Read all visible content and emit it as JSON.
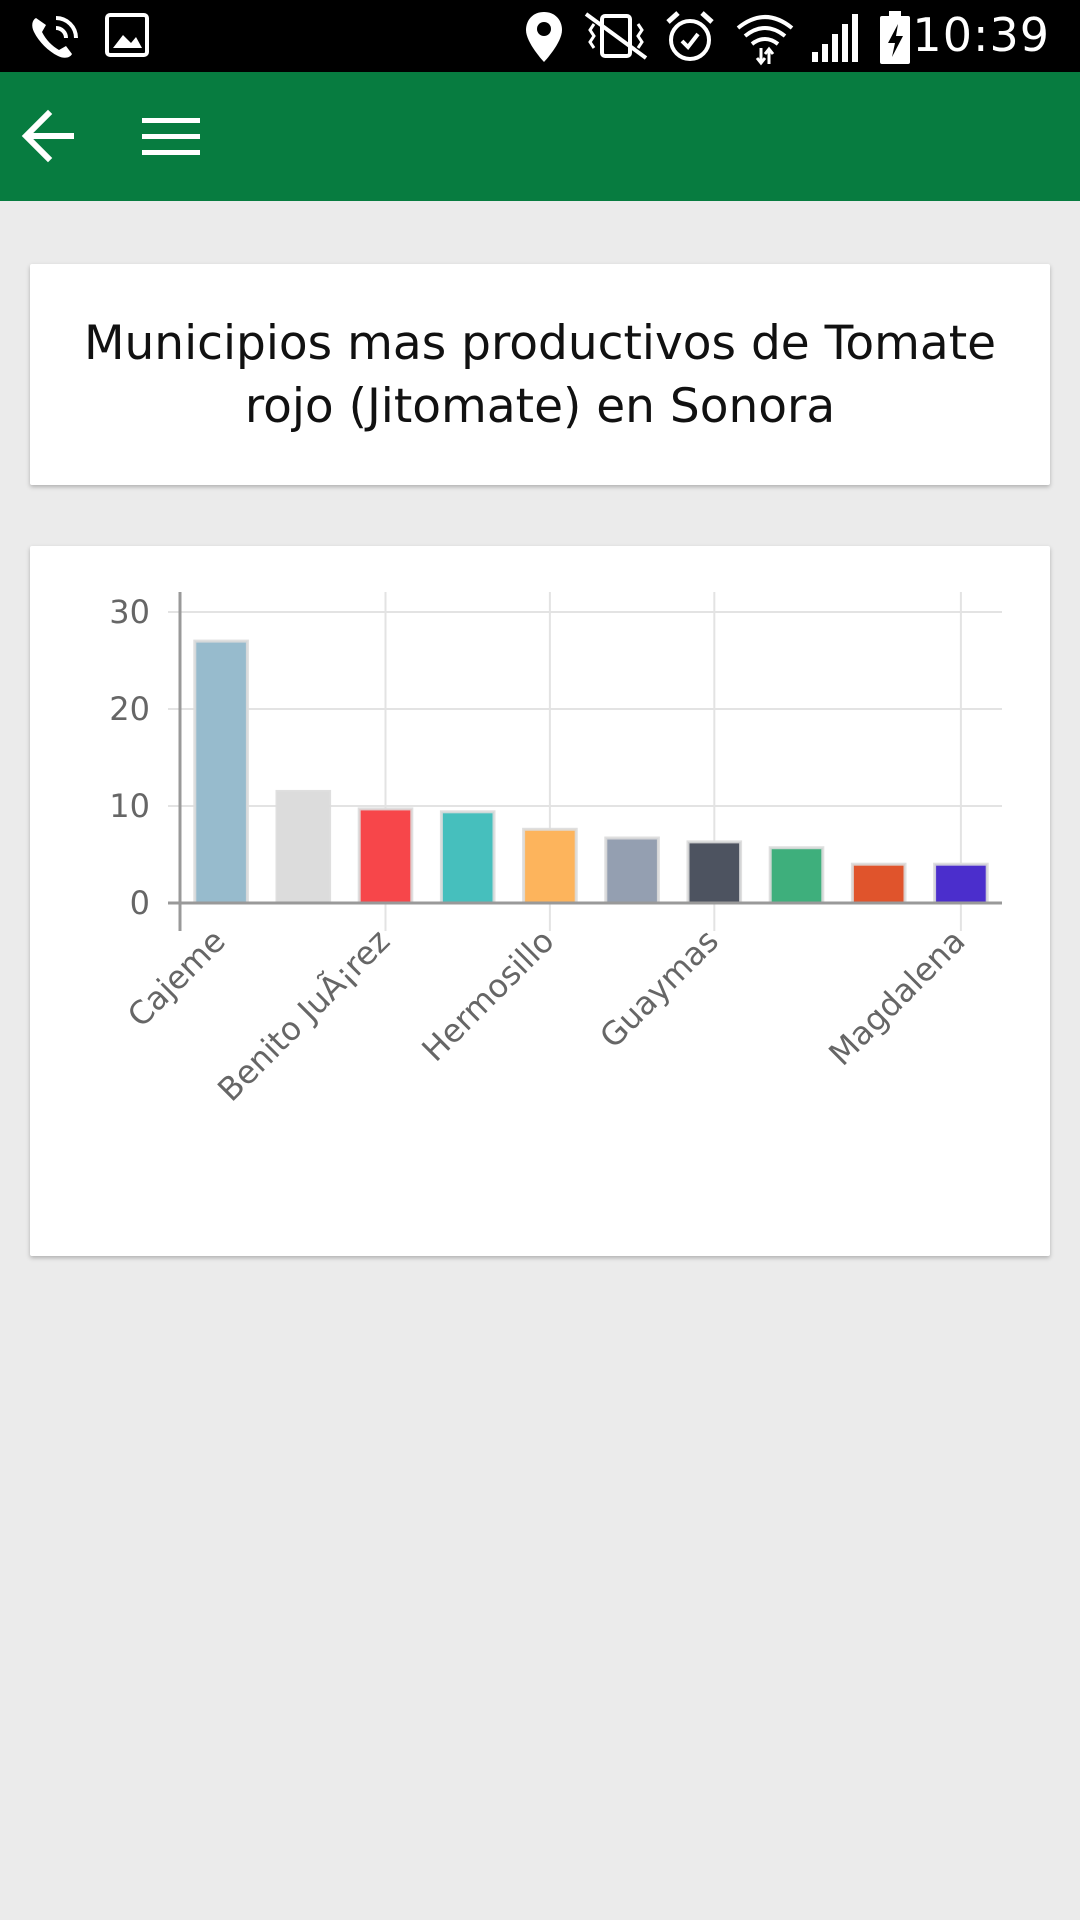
{
  "status_bar": {
    "time": "10:39",
    "icons": [
      "wifi-call-icon",
      "image-icon",
      "location-icon",
      "vibrate-icon",
      "alarm-icon",
      "wifi-icon",
      "signal-icon",
      "battery-charging-icon"
    ]
  },
  "app_bar": {
    "color": "#077c40",
    "back_icon": "arrow-left-icon",
    "menu_icon": "hamburger-menu-icon"
  },
  "title": "Municipios mas productivos de Tomate rojo (Jitomate) en Sonora",
  "chart_data": {
    "type": "bar",
    "categories": [
      "Cajeme",
      "",
      "Benito JuÃ¡rez",
      "",
      "Hermosillo",
      "",
      "Guaymas",
      "",
      "",
      "Magdalena"
    ],
    "values": [
      27,
      11.5,
      9.7,
      9.4,
      7.6,
      6.7,
      6.3,
      5.7,
      4.0,
      4.0
    ],
    "colors": [
      "#97bbcd",
      "#dcdcdc",
      "#f7464a",
      "#46bfbd",
      "#fdb45c",
      "#949fb1",
      "#4d5360",
      "#3eaf7c",
      "#e0542c",
      "#4b2ecc"
    ],
    "ylim": [
      0,
      30
    ],
    "yticks": [
      0,
      10,
      20,
      30
    ],
    "grid": true,
    "title": "",
    "xlabel": "",
    "ylabel": ""
  }
}
